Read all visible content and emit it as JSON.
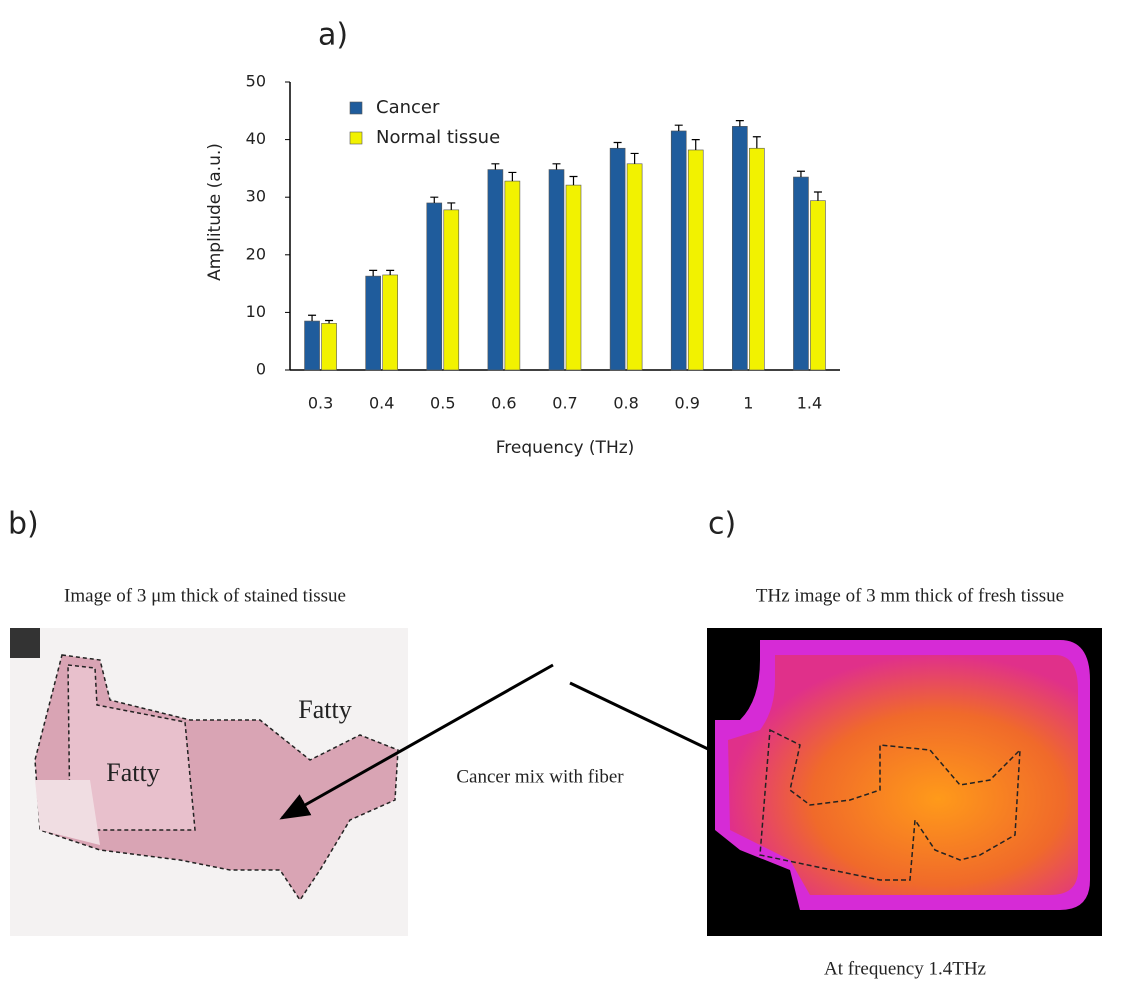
{
  "chart_data": {
    "type": "bar",
    "x_label": "Frequency (THz)",
    "y_label": "Amplitude (a.u.)",
    "categories": [
      "0.3",
      "0.4",
      "0.5",
      "0.6",
      "0.7",
      "0.8",
      "0.9",
      "1",
      "1.4"
    ],
    "series": [
      {
        "name": "Cancer",
        "color": "#1f5c9c",
        "values": [
          8.5,
          16.3,
          29,
          34.8,
          34.8,
          38.5,
          41.5,
          42.3,
          33.5
        ],
        "errors": [
          1,
          1,
          1,
          1,
          1,
          1,
          1,
          1,
          1
        ]
      },
      {
        "name": "Normal tissue",
        "color": "#f2f200",
        "values": [
          8.1,
          16.5,
          27.8,
          32.8,
          32.1,
          35.8,
          38.2,
          38.5,
          29.4
        ],
        "errors": [
          0.5,
          0.8,
          1.2,
          1.5,
          1.5,
          1.8,
          1.8,
          2,
          1.5
        ]
      }
    ],
    "ylim": [
      0,
      50
    ],
    "yticks": [
      0,
      10,
      20,
      30,
      40,
      50
    ],
    "grid": false,
    "legend": "top-left"
  },
  "panel_a": {
    "label": "a)"
  },
  "panel_b": {
    "label": "b)",
    "caption": "Image of 3 μm thick of stained tissue",
    "regions": [
      "Fatty",
      "Fatty"
    ]
  },
  "arrow_label": "Cancer mix with fiber",
  "panel_c": {
    "label": "c)",
    "caption": "THz image of 3 mm thick of fresh tissue",
    "footer": "At frequency 1.4THz"
  }
}
